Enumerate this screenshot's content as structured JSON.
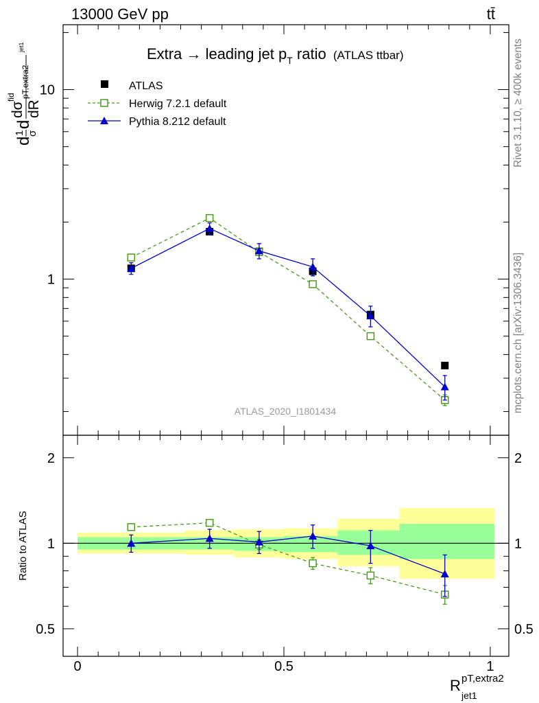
{
  "header": {
    "left": "13000 GeV pp",
    "right": "tt̄"
  },
  "side_labels": {
    "rivet": "Rivet 3.1.10, ≥ 400k events",
    "mcplots": "mcplots.cern.ch [arXiv:1306.3436]"
  },
  "chart_data": {
    "type": "scatter",
    "title_main": "Extra → leading jet p",
    "title_sub": "T",
    "title_tail": " ratio",
    "title_small": "(ATLAS ttbar)",
    "analysis_id": "ATLAS_2020_I1801434",
    "xlabel": "R",
    "xlabel_sup": "pT,extra2",
    "xlabel_sub": "jet1",
    "ylabel_main": {
      "a": "d",
      "b": "1",
      "c": "σ",
      "d": "dσ",
      "e": "fid",
      "f": "d",
      "g": "dR",
      "h": "pT,extra2",
      "i": "jet1"
    },
    "ylabel_ratio": "Ratio to ATLAS",
    "xlim": [
      -0.035,
      1.045
    ],
    "xticks": [
      0,
      0.5,
      1
    ],
    "xtick_labels": [
      "0",
      "0.5",
      "1"
    ],
    "main_ylim": [
      0.15,
      22
    ],
    "main_yscale": "log",
    "main_yticks": [
      1,
      10
    ],
    "main_ytick_labels": [
      "1",
      "10"
    ],
    "ratio_ylim": [
      0.4,
      2.4
    ],
    "ratio_yscale": "log",
    "ratio_yticks": [
      0.5,
      1,
      2
    ],
    "ratio_ytick_labels": [
      "0.5",
      "1",
      "2"
    ],
    "bins": [
      {
        "lo": 0.0,
        "hi": 0.26
      },
      {
        "lo": 0.26,
        "hi": 0.38
      },
      {
        "lo": 0.38,
        "hi": 0.5
      },
      {
        "lo": 0.5,
        "hi": 0.63
      },
      {
        "lo": 0.63,
        "hi": 0.78
      },
      {
        "lo": 0.78,
        "hi": 1.01
      }
    ],
    "bands": [
      {
        "inner": [
          0.95,
          1.05
        ],
        "outer": [
          0.92,
          1.09
        ]
      },
      {
        "inner": [
          0.95,
          1.05
        ],
        "outer": [
          0.91,
          1.11
        ]
      },
      {
        "inner": [
          0.94,
          1.05
        ],
        "outer": [
          0.89,
          1.12
        ]
      },
      {
        "inner": [
          0.93,
          1.06
        ],
        "outer": [
          0.88,
          1.13
        ]
      },
      {
        "inner": [
          0.91,
          1.11
        ],
        "outer": [
          0.83,
          1.22
        ]
      },
      {
        "inner": [
          0.88,
          1.17
        ],
        "outer": [
          0.75,
          1.33
        ]
      }
    ],
    "series": [
      {
        "name": "ATLAS",
        "color": "#000000",
        "marker": "filled-square",
        "x": [
          0.13,
          0.32,
          0.44,
          0.57,
          0.71,
          0.89
        ],
        "y": [
          1.14,
          1.78,
          1.4,
          1.1,
          0.65,
          0.35
        ],
        "yerr": [
          0,
          0,
          0,
          0,
          0,
          0
        ],
        "ratio": [
          1.0,
          1.0,
          1.0,
          1.0,
          1.0,
          1.0
        ],
        "ratio_err": [
          0,
          0,
          0,
          0,
          0,
          0
        ]
      },
      {
        "name": "Herwig 7.2.1 default",
        "color": "#4a9a1e",
        "marker": "open-square",
        "dashed": true,
        "x": [
          0.13,
          0.32,
          0.44,
          0.57,
          0.71,
          0.89
        ],
        "y": [
          1.3,
          2.1,
          1.39,
          0.94,
          0.5,
          0.23
        ],
        "yerr": [
          0.04,
          0.05,
          0.04,
          0.03,
          0.02,
          0.015
        ],
        "ratio": [
          1.14,
          1.18,
          0.99,
          0.85,
          0.77,
          0.66
        ],
        "ratio_err": [
          0.03,
          0.03,
          0.04,
          0.04,
          0.05,
          0.05
        ]
      },
      {
        "name": "Pythia 8.212 default",
        "color": "#0000cc",
        "marker": "filled-triangle",
        "x": [
          0.13,
          0.32,
          0.44,
          0.57,
          0.71,
          0.89
        ],
        "y": [
          1.14,
          1.85,
          1.41,
          1.16,
          0.64,
          0.27
        ],
        "yerr": [
          0.08,
          0.13,
          0.13,
          0.12,
          0.08,
          0.04
        ],
        "ratio": [
          1.0,
          1.04,
          1.01,
          1.06,
          0.98,
          0.78
        ],
        "ratio_err": [
          0.07,
          0.08,
          0.09,
          0.1,
          0.13,
          0.13
        ]
      }
    ],
    "band_colors": {
      "inner": "#99ff99",
      "outer": "#ffff99"
    }
  }
}
